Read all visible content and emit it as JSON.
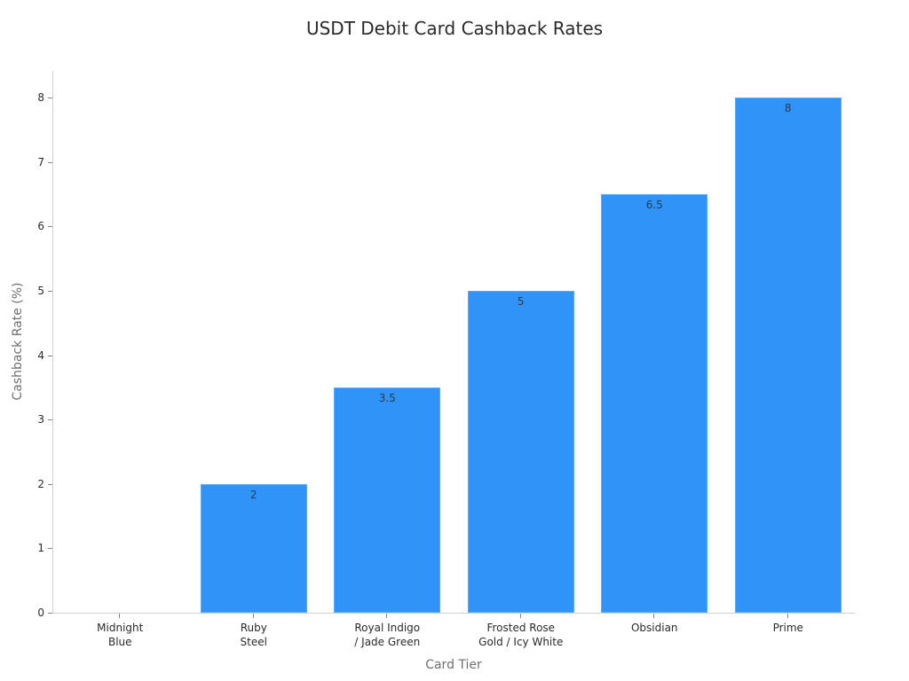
{
  "chart_data": {
    "type": "bar",
    "title": "USDT Debit Card Cashback Rates",
    "xlabel": "Card Tier",
    "ylabel": "Cashback Rate (%)",
    "categories": [
      "Midnight Blue",
      "Ruby Steel",
      "Royal Indigo / Jade Green",
      "Frosted Rose Gold / Icy White",
      "Obsidian",
      "Prime"
    ],
    "category_labels_wrapped": [
      "Midnight\nBlue",
      "Ruby\nSteel",
      "Royal Indigo\n/ Jade Green",
      "Frosted Rose\nGold / Icy White",
      "Obsidian",
      "Prime"
    ],
    "values": [
      0,
      2,
      3.5,
      5,
      6.5,
      8
    ],
    "data_labels": [
      "",
      "2",
      "3.5",
      "5",
      "6.5",
      "8"
    ],
    "ylim": [
      0,
      8.4
    ],
    "yticks": [
      "0",
      "1",
      "2",
      "3",
      "4",
      "5",
      "6",
      "7",
      "8"
    ],
    "grid": false,
    "legend": null,
    "bar_color": "#2f93f8"
  }
}
